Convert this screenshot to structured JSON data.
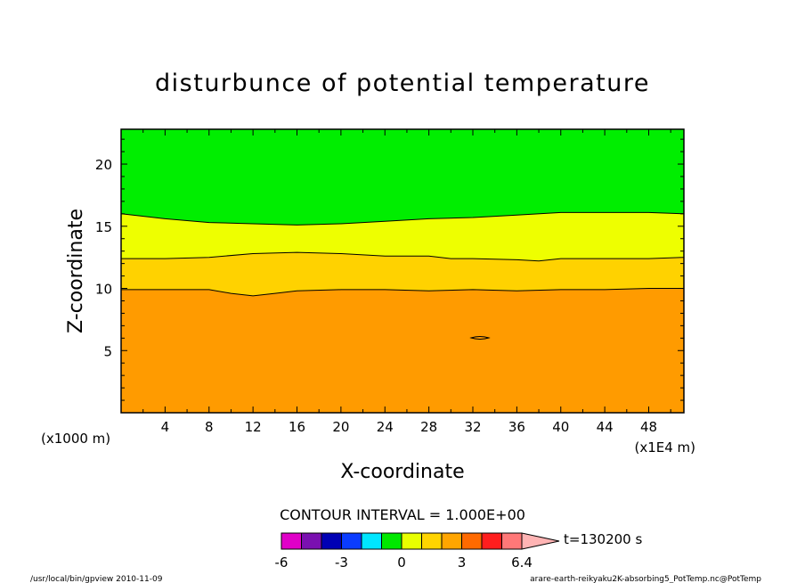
{
  "chart_data": {
    "type": "contour",
    "title": "disturbunce of potential temperature",
    "xlabel": "X-coordinate",
    "ylabel": "Z-coordinate",
    "x_unit_left": "(x1000 m)",
    "x_unit_right": "(x1E4 m)",
    "xlim": [
      0,
      51.2
    ],
    "ylim": [
      0,
      22.8
    ],
    "x_ticks": [
      "4",
      "8",
      "12",
      "16",
      "20",
      "24",
      "28",
      "32",
      "36",
      "40",
      "44",
      "48"
    ],
    "y_ticks": [
      "5",
      "10",
      "15",
      "20"
    ],
    "contour_interval_label": "CONTOUR INTERVAL = 1.000E+00",
    "time_label": "t=130200 s",
    "colorbar": {
      "levels": [
        -6,
        -5,
        -4,
        -3,
        -2,
        -1,
        0,
        1,
        2,
        3,
        4,
        5,
        6
      ],
      "colors": [
        "#e000c8",
        "#7a10b0",
        "#0000b4",
        "#0a3cff",
        "#00e6ff",
        "#00e800",
        "#e8ff00",
        "#ffd400",
        "#ffa500",
        "#ff6a00",
        "#ff1e1e",
        "#ff7878",
        "#ffb4b4"
      ],
      "labels": [
        "-6",
        "-3",
        "0",
        "3",
        "6.4"
      ]
    },
    "regions": [
      {
        "name": "green",
        "range": "0 to 1",
        "color": "#00ee00"
      },
      {
        "name": "yellow",
        "range": "1 to 2",
        "color": "#eeff00"
      },
      {
        "name": "gold",
        "range": "2 to 3",
        "color": "#ffd200"
      },
      {
        "name": "orange",
        "range": "3 to 4",
        "color": "#ff9b00"
      }
    ],
    "contours": [
      {
        "level": 1,
        "x": [
          0,
          4,
          8,
          12,
          16,
          20,
          24,
          28,
          32,
          36,
          40,
          44,
          48,
          51.2
        ],
        "z": [
          16.0,
          15.6,
          15.3,
          15.2,
          15.1,
          15.2,
          15.4,
          15.6,
          15.7,
          15.9,
          16.1,
          16.1,
          16.1,
          16.0
        ]
      },
      {
        "level": 2,
        "x": [
          0,
          4,
          8,
          12,
          16,
          20,
          24,
          28,
          30,
          32,
          36,
          38,
          40,
          44,
          48,
          51.2
        ],
        "z": [
          12.4,
          12.4,
          12.5,
          12.8,
          12.9,
          12.8,
          12.6,
          12.6,
          12.4,
          12.4,
          12.3,
          12.2,
          12.4,
          12.4,
          12.4,
          12.5
        ]
      },
      {
        "level": 3,
        "x": [
          0,
          4,
          8,
          10,
          12,
          14,
          16,
          20,
          24,
          28,
          32,
          36,
          40,
          44,
          48,
          51.2
        ],
        "z": [
          9.9,
          9.9,
          9.9,
          9.6,
          9.4,
          9.6,
          9.8,
          9.9,
          9.9,
          9.8,
          9.9,
          9.8,
          9.9,
          9.9,
          10.0,
          10.0
        ]
      }
    ]
  },
  "footer": {
    "left": "/usr/local/bin/gpview   2010-11-09",
    "right": "arare-earth-reikyaku2K-absorbing5_PotTemp.nc@PotTemp"
  }
}
